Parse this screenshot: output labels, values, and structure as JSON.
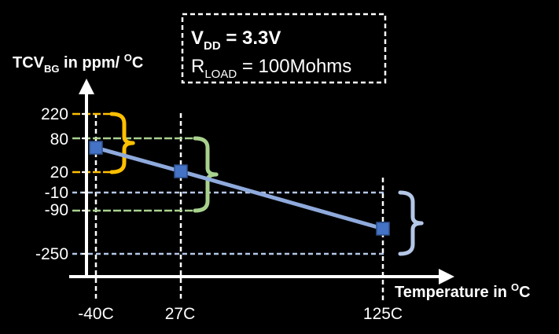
{
  "chart_data": {
    "type": "line",
    "xlabel": "Temperature in",
    "xlabel_unit": "C",
    "xlabel_unit_prefix": "O",
    "ylabel": "TCV",
    "ylabel_sub": "BG",
    "ylabel_suffix": " in ppm/ ",
    "ylabel_unit_prefix": "O",
    "ylabel_unit": "C",
    "x_ticks": [
      "-40C",
      "27C",
      "125C"
    ],
    "y_ticks": [
      "220",
      "80",
      "20",
      "-10",
      "-90",
      "-250"
    ],
    "series": [
      {
        "color": "#8faadc",
        "marker_color": "#4472c4",
        "points": [
          {
            "x": -40,
            "y": 60
          },
          {
            "x": 27,
            "y": -5
          },
          {
            "x": 125,
            "y": -200
          }
        ]
      }
    ],
    "ranges": [
      {
        "x": -40,
        "upper": 220,
        "lower": 20,
        "color": "#ffc000"
      },
      {
        "x": 27,
        "upper": 80,
        "lower": -90,
        "color": "#a9d18e"
      },
      {
        "x": 125,
        "upper": -10,
        "lower": -250,
        "color": "#b4c7e7"
      }
    ],
    "conditions": {
      "vdd_label": "V",
      "vdd_sub": "DD",
      "vdd_value": " = 3.3V",
      "rload_label": "R",
      "rload_sub": "LOAD",
      "rload_value": " = 100Mohms"
    }
  }
}
